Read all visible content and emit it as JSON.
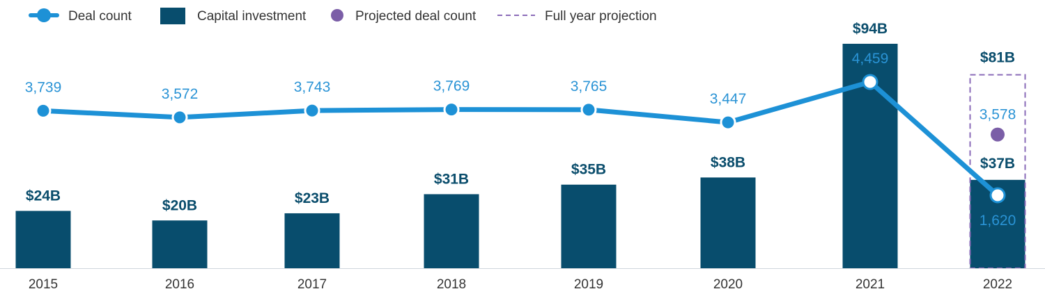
{
  "chart_data": {
    "type": "bar",
    "categories": [
      "2015",
      "2016",
      "2017",
      "2018",
      "2019",
      "2020",
      "2021",
      "2022"
    ],
    "series": [
      {
        "name": "Capital investment",
        "type": "bar",
        "values": [
          24,
          20,
          23,
          31,
          35,
          38,
          94,
          37
        ],
        "labels": [
          "$24B",
          "$20B",
          "$23B",
          "$31B",
          "$35B",
          "$38B",
          "$94B",
          "$37B"
        ],
        "color": "#084d6d"
      },
      {
        "name": "Deal count",
        "type": "line",
        "values": [
          3739,
          3572,
          3743,
          3769,
          3765,
          3447,
          4459,
          1620
        ],
        "labels": [
          "3,739",
          "3,572",
          "3,743",
          "3,769",
          "3,765",
          "3,447",
          "4,459",
          "1,620"
        ],
        "color": "#1d91d6"
      }
    ],
    "projection": {
      "category": "2022",
      "capital_investment": 81,
      "capital_investment_label": "$81B",
      "projected_deal_count": 3578,
      "projected_deal_count_label": "3,578",
      "point_color": "#7b5ea7",
      "box_color": "#8a6bb8"
    },
    "legend": {
      "position": "top-left",
      "items": [
        {
          "label": "Deal count",
          "marker": "line-dot"
        },
        {
          "label": "Capital investment",
          "marker": "square"
        },
        {
          "label": "Projected deal count",
          "marker": "circle"
        },
        {
          "label": "Full year projection",
          "marker": "dashed-line"
        }
      ]
    },
    "grid": false,
    "bar_ylim": [
      0,
      94
    ],
    "line_ylim": [
      0,
      4459
    ]
  }
}
